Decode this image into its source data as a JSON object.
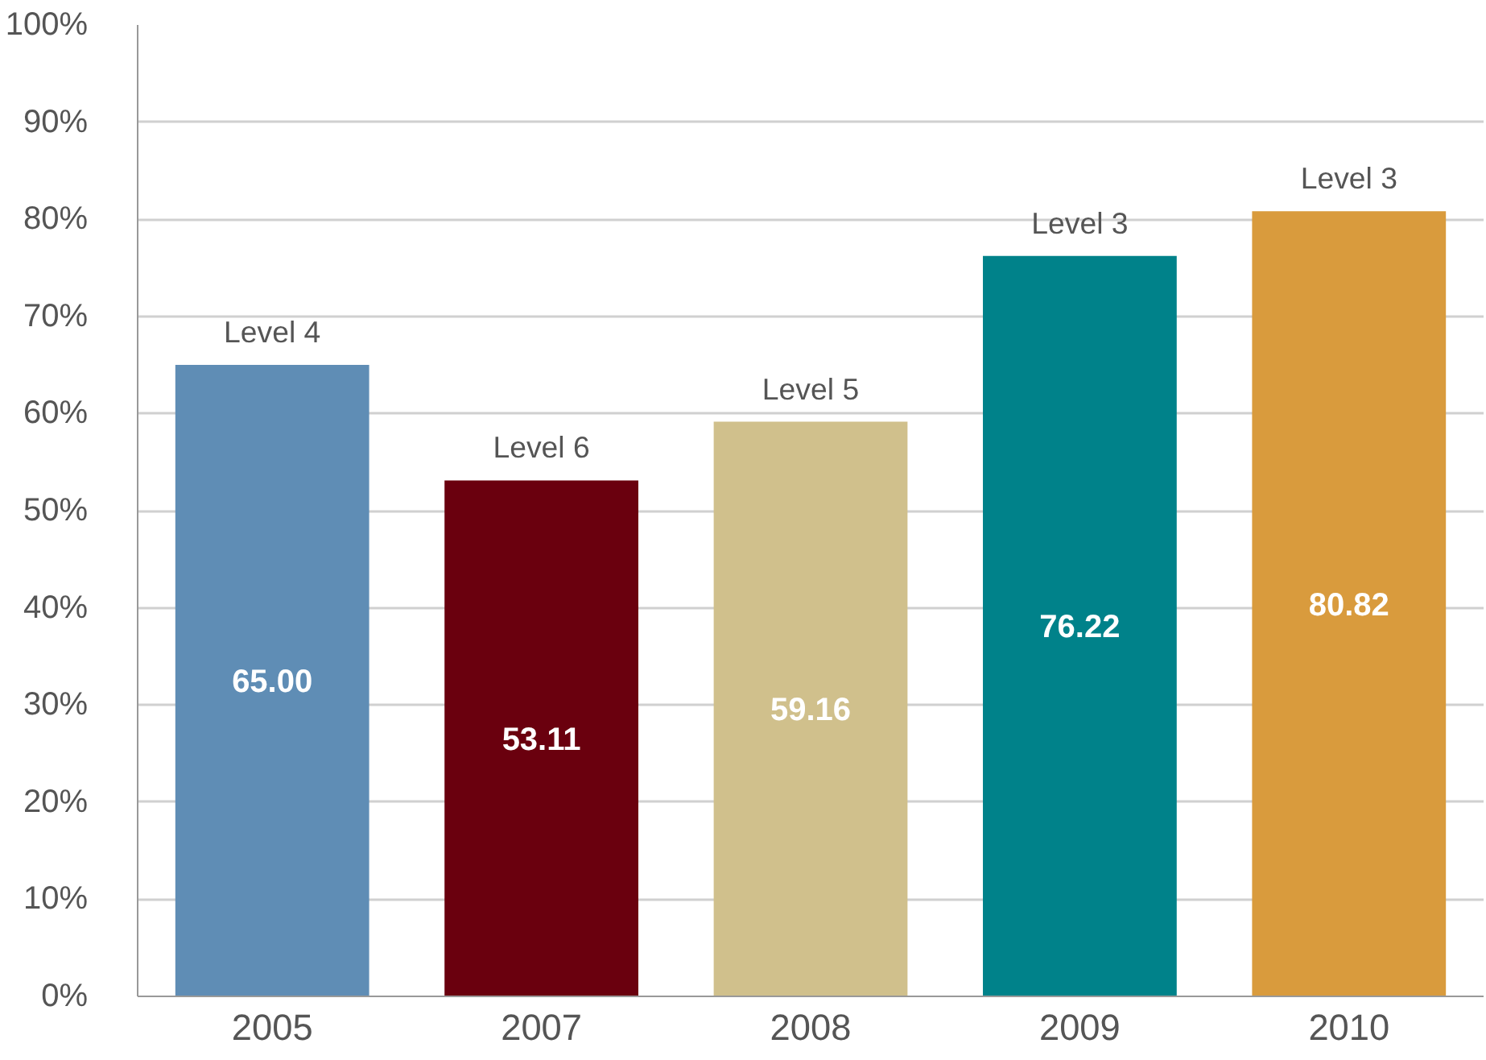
{
  "chart_data": {
    "type": "bar",
    "categories": [
      "2005",
      "2007",
      "2008",
      "2009",
      "2010"
    ],
    "values": [
      65.0,
      53.11,
      59.16,
      76.22,
      80.82
    ],
    "colors": [
      "#5f8db5",
      "#6a000e",
      "#d0c08c",
      "#00828a",
      "#d99b3d"
    ],
    "value_labels": [
      "65.00",
      "53.11",
      "59.16",
      "76.22",
      "80.82"
    ],
    "ylim": [
      0,
      100
    ],
    "yticks": [
      {
        "value": 0,
        "label": "0%"
      },
      {
        "value": 10,
        "label": "10%"
      },
      {
        "value": 20,
        "label": "20%"
      },
      {
        "value": 30,
        "label": "30%"
      },
      {
        "value": 40,
        "label": "40%"
      },
      {
        "value": 50,
        "label": "50%"
      },
      {
        "value": 60,
        "label": "60%"
      },
      {
        "value": 70,
        "label": "70%"
      },
      {
        "value": 80,
        "label": "80%"
      },
      {
        "value": 90,
        "label": "90%"
      },
      {
        "value": 100,
        "label": "100%"
      }
    ],
    "grid": "y",
    "annotations": [
      {
        "text": "Level 4",
        "x": "2005",
        "y": 65.0
      },
      {
        "text": "Level 6",
        "x": "2007",
        "y": 53.11
      },
      {
        "text": "Level 5",
        "x": "2008",
        "y": 59.16
      },
      {
        "text": "Level 3",
        "x": "2009",
        "y": 76.22
      },
      {
        "text": "Level 3",
        "x": "2010",
        "y": 80.82
      }
    ]
  }
}
